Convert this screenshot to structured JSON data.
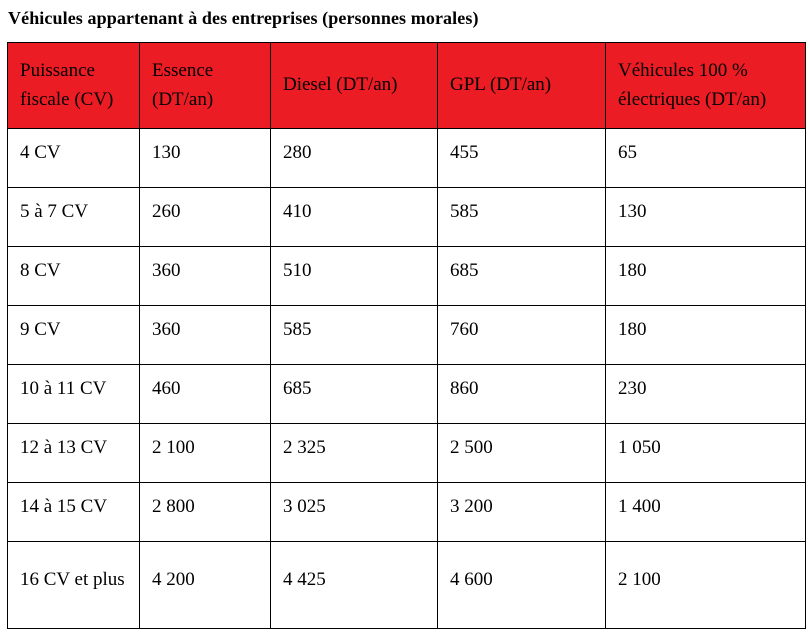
{
  "page": {
    "title": "Véhicules appartenant à des entreprises (personnes morales)"
  },
  "table": {
    "header_bg": "#EC1C24",
    "headers": [
      "Puissance fiscale (CV)",
      "Essence (DT/an)",
      "Diesel (DT/an)",
      "GPL (DT/an)",
      "Véhicules 100 % électriques (DT/an)"
    ],
    "rows": [
      [
        "4 CV",
        "130",
        "280",
        "455",
        "65"
      ],
      [
        "5 à 7 CV",
        "260",
        "410",
        "585",
        "130"
      ],
      [
        "8 CV",
        "360",
        "510",
        "685",
        "180"
      ],
      [
        "9 CV",
        "360",
        "585",
        "760",
        "180"
      ],
      [
        "10 à 11 CV",
        "460",
        "685",
        "860",
        "230"
      ],
      [
        "12 à 13 CV",
        "2 100",
        "2 325",
        "2 500",
        "1 050"
      ],
      [
        "14 à 15 CV",
        "2 800",
        "3 025",
        "3 200",
        "1 400"
      ],
      [
        "16 CV et plus",
        "4 200",
        "4 425",
        "4 600",
        "2 100"
      ]
    ]
  }
}
